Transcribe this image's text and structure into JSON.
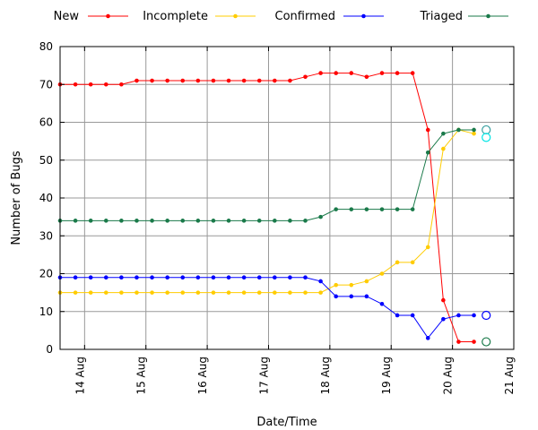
{
  "chart_data": {
    "type": "line",
    "title": "",
    "xlabel": "Date/Time",
    "ylabel": "Number of Bugs",
    "x_ticks": [
      "14 Aug",
      "15 Aug",
      "16 Aug",
      "17 Aug",
      "18 Aug",
      "19 Aug",
      "20 Aug",
      "21 Aug"
    ],
    "xlim": [
      13.6,
      21.0
    ],
    "ylim": [
      0,
      80
    ],
    "y_ticks": [
      0,
      10,
      20,
      30,
      40,
      50,
      60,
      70,
      80
    ],
    "grid": true,
    "legend_placement": "top",
    "series": [
      {
        "name": "New",
        "color": "#ff0000",
        "x": [
          13.6,
          13.85,
          14.1,
          14.35,
          14.6,
          14.85,
          15.1,
          15.35,
          15.6,
          15.85,
          16.1,
          16.35,
          16.6,
          16.85,
          17.1,
          17.35,
          17.6,
          17.85,
          18.1,
          18.35,
          18.6,
          18.85,
          19.1,
          19.35,
          19.6,
          19.85,
          20.1,
          20.35
        ],
        "y": [
          70,
          70,
          70,
          70,
          70,
          71,
          71,
          71,
          71,
          71,
          71,
          71,
          71,
          71,
          71,
          71,
          72,
          73,
          73,
          73,
          72,
          73,
          73,
          73,
          58,
          13,
          2,
          2
        ],
        "marker": "dot"
      },
      {
        "name": "Incomplete",
        "color": "#ffcc00",
        "x": [
          13.6,
          13.85,
          14.1,
          14.35,
          14.6,
          14.85,
          15.1,
          15.35,
          15.6,
          15.85,
          16.1,
          16.35,
          16.6,
          16.85,
          17.1,
          17.35,
          17.6,
          17.85,
          18.1,
          18.35,
          18.6,
          18.85,
          19.1,
          19.35,
          19.6,
          19.85,
          20.1,
          20.35
        ],
        "y": [
          15,
          15,
          15,
          15,
          15,
          15,
          15,
          15,
          15,
          15,
          15,
          15,
          15,
          15,
          15,
          15,
          15,
          15,
          17,
          17,
          18,
          20,
          23,
          23,
          27,
          53,
          58,
          57
        ],
        "marker": "dot"
      },
      {
        "name": "Confirmed",
        "color": "#0000ff",
        "x": [
          13.6,
          13.85,
          14.1,
          14.35,
          14.6,
          14.85,
          15.1,
          15.35,
          15.6,
          15.85,
          16.1,
          16.35,
          16.6,
          16.85,
          17.1,
          17.35,
          17.6,
          17.85,
          18.1,
          18.35,
          18.6,
          18.85,
          19.1,
          19.35,
          19.6,
          19.85,
          20.1,
          20.35
        ],
        "y": [
          19,
          19,
          19,
          19,
          19,
          19,
          19,
          19,
          19,
          19,
          19,
          19,
          19,
          19,
          19,
          19,
          19,
          18,
          14,
          14,
          14,
          12,
          9,
          9,
          3,
          8,
          9,
          9
        ],
        "marker": "dot"
      },
      {
        "name": "Triaged",
        "color": "#1a7a4a",
        "x": [
          13.6,
          13.85,
          14.1,
          14.35,
          14.6,
          14.85,
          15.1,
          15.35,
          15.6,
          15.85,
          16.1,
          16.35,
          16.6,
          16.85,
          17.1,
          17.35,
          17.6,
          17.85,
          18.1,
          18.35,
          18.6,
          18.85,
          19.1,
          19.35,
          19.6,
          19.85,
          20.1,
          20.35
        ],
        "y": [
          34,
          34,
          34,
          34,
          34,
          34,
          34,
          34,
          34,
          34,
          34,
          34,
          34,
          34,
          34,
          34,
          34,
          35,
          37,
          37,
          37,
          37,
          37,
          37,
          52,
          57,
          58,
          58
        ],
        "marker": "dot"
      }
    ],
    "annotations": [
      {
        "x": 20.55,
        "y": 58,
        "color": "#3aa0a0",
        "marker": "open-circle"
      },
      {
        "x": 20.55,
        "y": 56,
        "color": "#00e5e5",
        "marker": "open-circle"
      },
      {
        "x": 20.55,
        "y": 9,
        "color": "#0000ff",
        "marker": "open-circle"
      },
      {
        "x": 20.55,
        "y": 2,
        "color": "#1a7a4a",
        "marker": "open-circle"
      }
    ]
  }
}
